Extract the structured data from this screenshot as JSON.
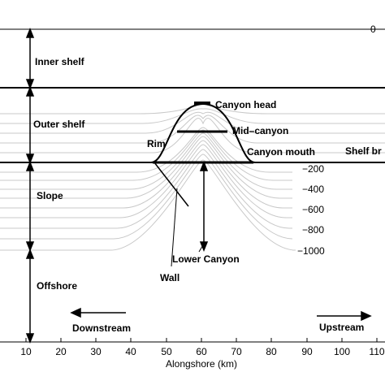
{
  "zones": {
    "inner_shelf": "Inner shelf",
    "outer_shelf": "Outer shelf",
    "slope": "Slope",
    "offshore": "Offshore"
  },
  "features": {
    "canyon_head": "Canyon head",
    "mid_canyon": "Mid–canyon",
    "canyon_mouth": "Canyon mouth",
    "rim": "Rim",
    "lower_canyon": "Lower Canyon",
    "wall": "Wall",
    "shelf_break": "Shelf br",
    "top_right": "0"
  },
  "directions": {
    "downstream": "Downstream",
    "upstream": "Upstream"
  },
  "depth_labels": [
    "−200",
    "−400",
    "−600",
    "−800",
    "−1000"
  ],
  "x_axis": {
    "label": "Alongshore (km)",
    "ticks": [
      "10",
      "20",
      "30",
      "40",
      "50",
      "60",
      "70",
      "80",
      "90",
      "100",
      "110"
    ]
  },
  "colors": {
    "contour": "#c8c8c8",
    "line": "#000000"
  }
}
